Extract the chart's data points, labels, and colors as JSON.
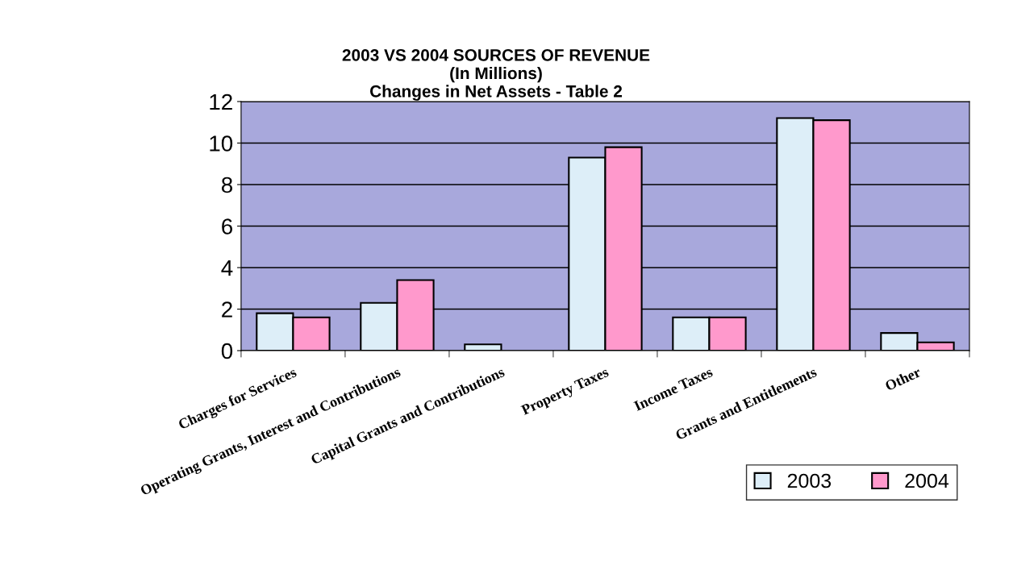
{
  "chart_data": {
    "type": "bar",
    "title": "2003 VS 2004 SOURCES OF REVENUE\n(In Millions)\nChanges in Net Assets - Table 2",
    "categories": [
      "Charges for Services",
      "Operating Grants, Interest and Contributions",
      "Capital Grants and Contributions",
      "Property Taxes",
      "Income Taxes",
      "Grants and Entitlements",
      "Other"
    ],
    "series": [
      {
        "name": "2003",
        "color": "#ddeef8",
        "values": [
          1.8,
          2.3,
          0.3,
          9.3,
          1.6,
          11.2,
          0.85
        ]
      },
      {
        "name": "2004",
        "color": "#ff99cc",
        "values": [
          1.6,
          3.4,
          null,
          9.8,
          1.6,
          11.1,
          0.4
        ]
      }
    ],
    "ylim": [
      0,
      12
    ],
    "yticks": [
      0,
      2,
      4,
      6,
      8,
      10,
      12
    ],
    "grid": "y",
    "legend": "bottom right"
  }
}
